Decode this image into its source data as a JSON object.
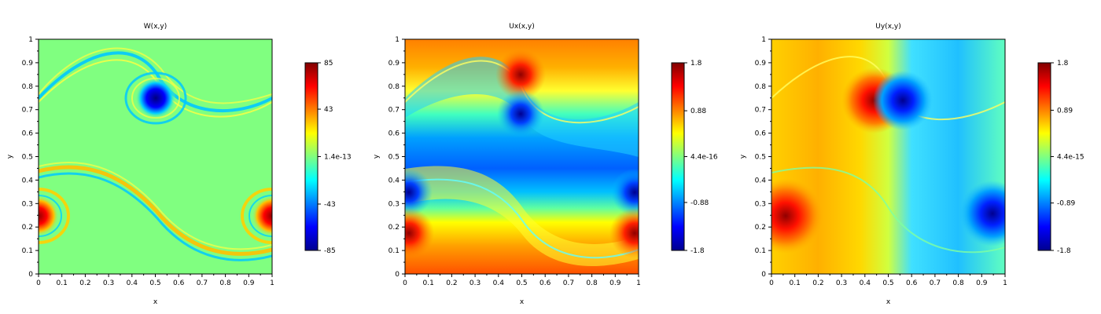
{
  "chart_data": [
    {
      "type": "heatmap",
      "title": "W(x,y)",
      "xlabel": "x",
      "ylabel": "y",
      "xlim": [
        0,
        1
      ],
      "ylim": [
        0,
        1
      ],
      "x_ticks": [
        "0",
        "0.1",
        "0.2",
        "0.3",
        "0.4",
        "0.5",
        "0.6",
        "0.7",
        "0.8",
        "0.9",
        "1"
      ],
      "y_ticks": [
        "0",
        "0.1",
        "0.2",
        "0.3",
        "0.4",
        "0.5",
        "0.6",
        "0.7",
        "0.8",
        "0.9",
        "1"
      ],
      "colorbar": {
        "min": -85,
        "max": 85,
        "tick_values": [
          -85,
          -43,
          0,
          43,
          85
        ],
        "tick_labels": [
          "-85",
          "-43",
          "1.4e-13",
          "43",
          "85"
        ]
      },
      "features": [
        {
          "kind": "vortex",
          "x": 0.5,
          "y": 0.75,
          "value": -85
        },
        {
          "kind": "vortex",
          "x": 0.0,
          "y": 0.25,
          "value": 85
        },
        {
          "kind": "vortex",
          "x": 1.0,
          "y": 0.25,
          "value": 85
        }
      ]
    },
    {
      "type": "heatmap",
      "title": "Ux(x,y)",
      "xlabel": "x",
      "ylabel": "y",
      "xlim": [
        0,
        1
      ],
      "ylim": [
        0,
        1
      ],
      "x_ticks": [
        "0",
        "0.1",
        "0.2",
        "0.3",
        "0.4",
        "0.5",
        "0.6",
        "0.7",
        "0.8",
        "0.9",
        "1"
      ],
      "y_ticks": [
        "0",
        "0.1",
        "0.2",
        "0.3",
        "0.4",
        "0.5",
        "0.6",
        "0.7",
        "0.8",
        "0.9",
        "1"
      ],
      "colorbar": {
        "min": -1.8,
        "max": 1.8,
        "tick_values": [
          -1.8,
          -0.88,
          0,
          0.88,
          1.8
        ],
        "tick_labels": [
          "-1.8",
          "-0.88",
          "4.4e-16",
          "0.88",
          "1.8"
        ]
      }
    },
    {
      "type": "heatmap",
      "title": "Uy(x,y)",
      "xlabel": "x",
      "ylabel": "y",
      "xlim": [
        0,
        1
      ],
      "ylim": [
        0,
        1
      ],
      "x_ticks": [
        "0",
        "0.1",
        "0.2",
        "0.3",
        "0.4",
        "0.5",
        "0.6",
        "0.7",
        "0.8",
        "0.9",
        "1"
      ],
      "y_ticks": [
        "0",
        "0.1",
        "0.2",
        "0.3",
        "0.4",
        "0.5",
        "0.6",
        "0.7",
        "0.8",
        "0.9",
        "1"
      ],
      "colorbar": {
        "min": -1.8,
        "max": 1.8,
        "tick_values": [
          -1.8,
          -0.89,
          0,
          0.89,
          1.8
        ],
        "tick_labels": [
          "-1.8",
          "-0.89",
          "4.4e-15",
          "0.89",
          "1.8"
        ]
      }
    }
  ]
}
